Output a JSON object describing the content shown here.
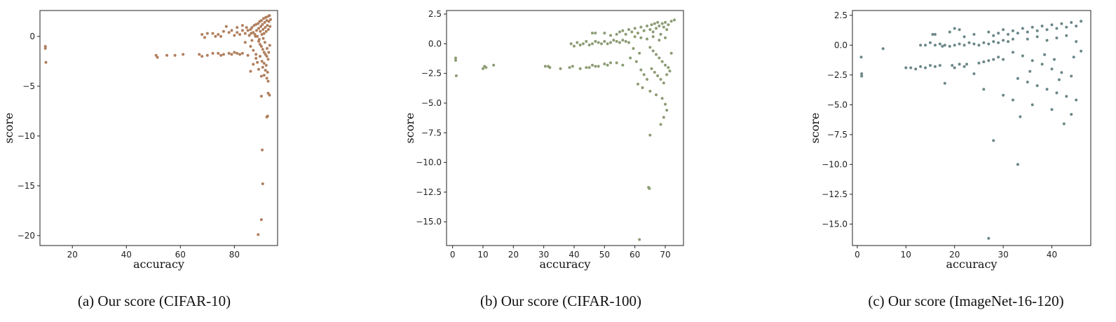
{
  "chart_data": [
    {
      "type": "scatter",
      "xlabel": "accuracy",
      "ylabel": "score",
      "caption": "(a)  Our score (CIFAR-10)",
      "color": "#b07f5e",
      "xlim": [
        8,
        96
      ],
      "ylim": [
        -21,
        2.6
      ],
      "xticks": [
        20,
        40,
        60,
        80
      ],
      "xtick_labels": [
        "20",
        "40",
        "60",
        "80"
      ],
      "yticks": [
        -20,
        -15,
        -10,
        -5,
        0
      ],
      "ytick_labels": [
        "−20",
        "−15",
        "−10",
        "−5",
        "0"
      ],
      "points": [
        [
          10,
          -1.0
        ],
        [
          10,
          -1.2
        ],
        [
          10.2,
          -2.6
        ],
        [
          51,
          -1.9
        ],
        [
          51.5,
          -2.1
        ],
        [
          55,
          -1.9
        ],
        [
          58,
          -1.9
        ],
        [
          61,
          -1.8
        ],
        [
          67,
          -1.8
        ],
        [
          68,
          -2.0
        ],
        [
          70,
          -1.9
        ],
        [
          72,
          -1.7
        ],
        [
          74,
          -1.7
        ],
        [
          75,
          -1.9
        ],
        [
          76,
          -1.8
        ],
        [
          78,
          -1.7
        ],
        [
          79,
          -1.8
        ],
        [
          80,
          -1.6
        ],
        [
          81,
          -1.7
        ],
        [
          82,
          -1.8
        ],
        [
          83,
          -1.7
        ],
        [
          68,
          0.2
        ],
        [
          69,
          -0.1
        ],
        [
          72,
          0.3
        ],
        [
          74,
          0.2
        ],
        [
          75,
          0
        ],
        [
          76,
          0.5
        ],
        [
          77,
          1.0
        ],
        [
          79,
          0.6
        ],
        [
          80,
          0.1
        ],
        [
          81,
          0.4
        ],
        [
          82,
          0.2
        ],
        [
          83,
          0.6
        ],
        [
          84,
          0.3
        ],
        [
          85,
          0.6
        ],
        [
          85.5,
          0.1
        ],
        [
          86,
          0.7
        ],
        [
          86.5,
          0.9
        ],
        [
          87,
          0.4
        ],
        [
          87.3,
          1.1
        ],
        [
          87.6,
          0.2
        ],
        [
          88,
          1.2
        ],
        [
          88.2,
          0.6
        ],
        [
          88.5,
          0
        ],
        [
          88.8,
          1.3
        ],
        [
          89,
          0.8
        ],
        [
          89.2,
          -0.3
        ],
        [
          89.4,
          1.5
        ],
        [
          89.6,
          0.5
        ],
        [
          89.8,
          1.0
        ],
        [
          90,
          1.6
        ],
        [
          90.2,
          0.2
        ],
        [
          90.4,
          1.2
        ],
        [
          90.6,
          0.7
        ],
        [
          90.8,
          1.8
        ],
        [
          91,
          0.3
        ],
        [
          91.2,
          1.4
        ],
        [
          91.4,
          0.9
        ],
        [
          91.6,
          1.9
        ],
        [
          91.8,
          0.5
        ],
        [
          92,
          1.6
        ],
        [
          92.2,
          1.1
        ],
        [
          92.4,
          2.0
        ],
        [
          92.6,
          0.7
        ],
        [
          92.8,
          1.5
        ],
        [
          93,
          2.1
        ],
        [
          93.2,
          1.0
        ],
        [
          93.4,
          1.7
        ],
        [
          89,
          -0.5
        ],
        [
          89.5,
          -0.8
        ],
        [
          90,
          -1.0
        ],
        [
          90.5,
          -1.3
        ],
        [
          91,
          -1.6
        ],
        [
          91.5,
          -1.8
        ],
        [
          92,
          -2.0
        ],
        [
          92.5,
          -2.3
        ],
        [
          90.2,
          -2.5
        ],
        [
          91,
          -2.7
        ],
        [
          91.8,
          -2.9
        ],
        [
          90.5,
          -3.1
        ],
        [
          91.5,
          -3.4
        ],
        [
          92.3,
          -3.6
        ],
        [
          91,
          -3.9
        ],
        [
          92,
          -4.2
        ],
        [
          92.5,
          -4.5
        ],
        [
          86,
          -3.5
        ],
        [
          87,
          -2.8
        ],
        [
          88,
          -2.2
        ],
        [
          89,
          -3.3
        ],
        [
          90,
          -4.0
        ],
        [
          92.5,
          -5.7
        ],
        [
          93,
          -5.9
        ],
        [
          90,
          -6.0
        ],
        [
          92,
          -8.1
        ],
        [
          92.3,
          -8.0
        ],
        [
          90.3,
          -11.4
        ],
        [
          90.5,
          -14.8
        ],
        [
          90,
          -18.4
        ],
        [
          88.8,
          -19.9
        ],
        [
          84,
          -0.6
        ],
        [
          86,
          -1.0
        ],
        [
          87,
          -1.4
        ],
        [
          88,
          -1.8
        ],
        [
          85,
          -1.9
        ],
        [
          86.5,
          -0.4
        ],
        [
          88.5,
          -2.6
        ],
        [
          89.5,
          -2.0
        ],
        [
          90.7,
          -0.2
        ],
        [
          91.3,
          -0.6
        ],
        [
          92.1,
          -1.2
        ],
        [
          92.7,
          -1.6
        ],
        [
          93.1,
          -0.9
        ],
        [
          87.8,
          0.0
        ],
        [
          86.2,
          0.3
        ],
        [
          84.5,
          0.9
        ],
        [
          83,
          1.1
        ],
        [
          81,
          0.9
        ],
        [
          78,
          0.4
        ],
        [
          73,
          0.0
        ],
        [
          70,
          0.3
        ]
      ]
    },
    {
      "type": "scatter",
      "xlabel": "accuracy",
      "ylabel": "score",
      "caption": "(b)  Our score (CIFAR-100)",
      "color": "#8c9c74",
      "xlim": [
        -2,
        76
      ],
      "ylim": [
        -17,
        2.8
      ],
      "xticks": [
        0,
        10,
        20,
        30,
        40,
        50,
        60,
        70
      ],
      "xtick_labels": [
        "0",
        "10",
        "20",
        "30",
        "40",
        "50",
        "60",
        "70"
      ],
      "yticks": [
        -15,
        -12.5,
        -10,
        -7.5,
        -5,
        -2.5,
        0,
        2.5
      ],
      "ytick_labels": [
        "−15.0",
        "−12.5",
        "−10.0",
        "−7.5",
        "−5.0",
        "−2.5",
        "0.0",
        "2.5"
      ],
      "points": [
        [
          1,
          -1.2
        ],
        [
          1,
          -1.4
        ],
        [
          1.2,
          -2.7
        ],
        [
          10,
          -2.1
        ],
        [
          10.5,
          -1.9
        ],
        [
          11,
          -2.0
        ],
        [
          13.5,
          -1.8
        ],
        [
          30.5,
          -1.9
        ],
        [
          31.5,
          -1.9
        ],
        [
          32,
          -2.0
        ],
        [
          35.5,
          -2.1
        ],
        [
          38.5,
          -2.0
        ],
        [
          39.5,
          -1.9
        ],
        [
          42,
          -2.1
        ],
        [
          44,
          -2.0
        ],
        [
          45,
          -2.0
        ],
        [
          46,
          -1.8
        ],
        [
          47,
          -1.9
        ],
        [
          48,
          -1.9
        ],
        [
          50,
          -1.7
        ],
        [
          51,
          -1.8
        ],
        [
          52,
          -1.6
        ],
        [
          54,
          -1.6
        ],
        [
          56,
          -1.8
        ],
        [
          39,
          0.0
        ],
        [
          40,
          -0.2
        ],
        [
          41,
          0.1
        ],
        [
          42,
          -0.1
        ],
        [
          43,
          0.0
        ],
        [
          44,
          0.2
        ],
        [
          45,
          -0.1
        ],
        [
          46,
          0.0
        ],
        [
          47,
          0.2
        ],
        [
          48,
          0.1
        ],
        [
          49,
          0.0
        ],
        [
          50,
          0.2
        ],
        [
          51,
          0.0
        ],
        [
          52,
          0.1
        ],
        [
          53,
          0.3
        ],
        [
          54,
          0.2
        ],
        [
          55,
          0.1
        ],
        [
          56,
          0.3
        ],
        [
          57,
          0.2
        ],
        [
          58,
          0.1
        ],
        [
          46,
          0.9
        ],
        [
          47,
          0.9
        ],
        [
          50,
          0.9
        ],
        [
          52,
          0.7
        ],
        [
          54,
          0.8
        ],
        [
          55,
          1.0
        ],
        [
          56,
          1.1
        ],
        [
          57,
          0.8
        ],
        [
          58,
          1.2
        ],
        [
          59,
          1.0
        ],
        [
          60,
          1.3
        ],
        [
          61,
          0.9
        ],
        [
          62,
          1.4
        ],
        [
          63,
          1.1
        ],
        [
          64,
          1.5
        ],
        [
          65,
          1.2
        ],
        [
          65.5,
          1.6
        ],
        [
          66,
          1.0
        ],
        [
          66.5,
          1.7
        ],
        [
          67,
          1.3
        ],
        [
          67.5,
          1.8
        ],
        [
          68,
          1.5
        ],
        [
          68.5,
          0.8
        ],
        [
          69,
          1.7
        ],
        [
          69.5,
          1.4
        ],
        [
          70,
          1.8
        ],
        [
          70.5,
          1.2
        ],
        [
          71,
          1.6
        ],
        [
          72,
          1.9
        ],
        [
          73,
          2.0
        ],
        [
          60,
          0.6
        ],
        [
          62,
          0.5
        ],
        [
          64,
          0.4
        ],
        [
          66,
          0.6
        ],
        [
          68,
          0.3
        ],
        [
          70,
          0.5
        ],
        [
          65,
          -0.3
        ],
        [
          66,
          -0.6
        ],
        [
          67,
          -0.9
        ],
        [
          68,
          -1.2
        ],
        [
          69,
          -1.5
        ],
        [
          70,
          -1.8
        ],
        [
          65.5,
          -2.1
        ],
        [
          66.5,
          -2.4
        ],
        [
          67.5,
          -2.7
        ],
        [
          68.5,
          -3.0
        ],
        [
          69.5,
          -3.3
        ],
        [
          70.5,
          -2.6
        ],
        [
          71,
          -2.0
        ],
        [
          62,
          -2.2
        ],
        [
          63,
          -2.6
        ],
        [
          64,
          -3.0
        ],
        [
          61,
          -3.4
        ],
        [
          62.5,
          -3.7
        ],
        [
          65,
          -4.0
        ],
        [
          67,
          -4.3
        ],
        [
          69,
          -4.6
        ],
        [
          70,
          -5.1
        ],
        [
          70.5,
          -5.6
        ],
        [
          69.5,
          -6.2
        ],
        [
          68.5,
          -6.8
        ],
        [
          65,
          -7.7
        ],
        [
          64.5,
          -12.1
        ],
        [
          64.8,
          -12.2
        ],
        [
          61.5,
          -16.5
        ],
        [
          71.5,
          -2.3
        ],
        [
          72,
          -0.8
        ],
        [
          58.5,
          -1.2
        ],
        [
          59.5,
          -0.4
        ],
        [
          60.5,
          -1.5
        ],
        [
          61.5,
          -0.8
        ]
      ]
    },
    {
      "type": "scatter",
      "xlabel": "accuracy",
      "ylabel": "score",
      "caption": "(c)  Our score (ImageNet-16-120)",
      "color": "#6b8788",
      "xlim": [
        -1,
        48
      ],
      "ylim": [
        -16.8,
        2.9
      ],
      "xticks": [
        0,
        10,
        20,
        30,
        40
      ],
      "xtick_labels": [
        "0",
        "10",
        "20",
        "30",
        "40"
      ],
      "yticks": [
        -15,
        -12.5,
        -10,
        -7.5,
        -5,
        -2.5,
        0,
        2.5
      ],
      "ytick_labels": [
        "−15.0",
        "−12.5",
        "−10.0",
        "−7.5",
        "−5.0",
        "−2.5",
        "0.0",
        "2.5"
      ],
      "points": [
        [
          0.8,
          -1.0
        ],
        [
          0.9,
          -2.4
        ],
        [
          0.9,
          -2.6
        ],
        [
          5.3,
          -0.3
        ],
        [
          10,
          -1.9
        ],
        [
          11,
          -1.9
        ],
        [
          12,
          -2.0
        ],
        [
          13,
          -1.8
        ],
        [
          14,
          -1.9
        ],
        [
          15,
          -1.7
        ],
        [
          16,
          -1.8
        ],
        [
          17,
          -1.7
        ],
        [
          19.5,
          -1.7
        ],
        [
          20,
          -1.9
        ],
        [
          21,
          -1.6
        ],
        [
          22,
          -1.8
        ],
        [
          25,
          -1.5
        ],
        [
          26,
          -1.4
        ],
        [
          27,
          -1.3
        ],
        [
          28,
          -1.2
        ],
        [
          29,
          -1.0
        ],
        [
          30,
          -1.2
        ],
        [
          13,
          0.0
        ],
        [
          14,
          0.0
        ],
        [
          15,
          0.2
        ],
        [
          16,
          0.0
        ],
        [
          17,
          0.1
        ],
        [
          18,
          0.0
        ],
        [
          19,
          -0.1
        ],
        [
          20,
          0.0
        ],
        [
          21,
          0.1
        ],
        [
          22,
          0.0
        ],
        [
          23,
          0.2
        ],
        [
          24,
          0.1
        ],
        [
          25,
          0.0
        ],
        [
          26,
          0.2
        ],
        [
          27,
          0.1
        ],
        [
          28,
          0.3
        ],
        [
          29,
          0.2
        ],
        [
          30,
          0.4
        ],
        [
          31,
          0.3
        ],
        [
          32,
          0.5
        ],
        [
          15.5,
          0.9
        ],
        [
          16,
          0.9
        ],
        [
          19,
          1.1
        ],
        [
          20,
          1.4
        ],
        [
          21,
          1.3
        ],
        [
          22,
          0.7
        ],
        [
          24,
          0.9
        ],
        [
          27,
          1.1
        ],
        [
          28,
          0.8
        ],
        [
          29,
          1.0
        ],
        [
          30,
          1.3
        ],
        [
          31,
          0.9
        ],
        [
          32,
          1.2
        ],
        [
          33,
          1.0
        ],
        [
          34,
          1.4
        ],
        [
          35,
          1.1
        ],
        [
          36,
          1.5
        ],
        [
          37,
          1.2
        ],
        [
          38,
          1.6
        ],
        [
          39,
          1.3
        ],
        [
          40,
          1.7
        ],
        [
          41,
          1.4
        ],
        [
          42,
          1.8
        ],
        [
          43,
          1.5
        ],
        [
          44,
          1.9
        ],
        [
          45,
          1.6
        ],
        [
          46,
          2.0
        ],
        [
          35,
          0.5
        ],
        [
          37,
          0.7
        ],
        [
          39,
          0.4
        ],
        [
          41,
          0.6
        ],
        [
          43,
          0.8
        ],
        [
          45,
          0.3
        ],
        [
          32,
          -0.6
        ],
        [
          34,
          -0.9
        ],
        [
          36,
          -1.3
        ],
        [
          38,
          -1.6
        ],
        [
          40,
          -2.0
        ],
        [
          42,
          -2.3
        ],
        [
          44,
          -2.6
        ],
        [
          33,
          -2.8
        ],
        [
          35,
          -3.1
        ],
        [
          37,
          -3.4
        ],
        [
          39,
          -3.7
        ],
        [
          41,
          -4.0
        ],
        [
          43,
          -4.3
        ],
        [
          45,
          -4.6
        ],
        [
          30,
          -4.2
        ],
        [
          32,
          -4.6
        ],
        [
          36,
          -5.0
        ],
        [
          40,
          -5.4
        ],
        [
          44,
          -5.8
        ],
        [
          33.5,
          -6.0
        ],
        [
          42.5,
          -6.6
        ],
        [
          28,
          -8.0
        ],
        [
          33,
          -10.0
        ],
        [
          27,
          -16.2
        ],
        [
          18,
          -3.2
        ],
        [
          24,
          -2.4
        ],
        [
          26,
          -3.7
        ],
        [
          38.5,
          -0.8
        ],
        [
          40.5,
          -1.2
        ],
        [
          44.5,
          -1.0
        ],
        [
          46,
          -0.5
        ],
        [
          22.5,
          -1.6
        ],
        [
          17.5,
          -0.1
        ],
        [
          35.5,
          -2.2
        ],
        [
          41.5,
          -2.9
        ]
      ]
    }
  ]
}
